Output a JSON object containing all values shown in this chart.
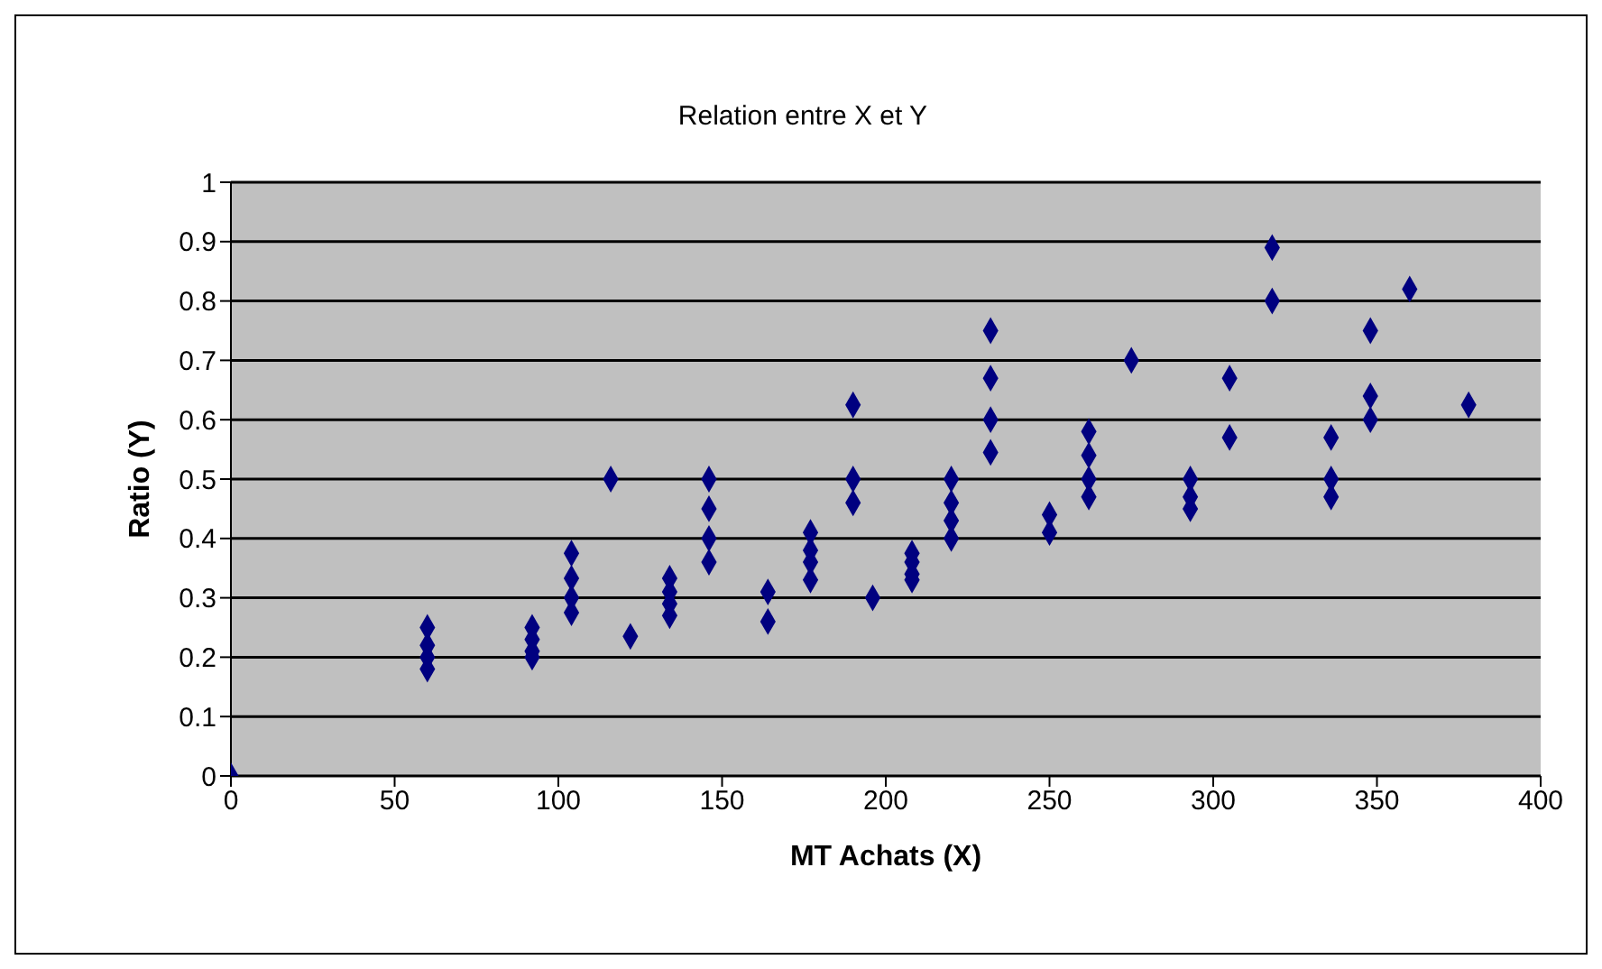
{
  "chart_data": {
    "type": "scatter",
    "title": "Relation entre X et Y",
    "xlabel": "MT Achats (X)",
    "ylabel": "Ratio (Y)",
    "x": [
      0,
      60,
      60,
      60,
      60,
      92,
      92,
      92,
      92,
      104,
      104,
      104,
      104,
      116,
      122,
      134,
      134,
      134,
      134,
      146,
      146,
      146,
      146,
      164,
      164,
      177,
      177,
      177,
      177,
      190,
      190,
      190,
      196,
      208,
      208,
      208,
      208,
      220,
      220,
      220,
      220,
      232,
      232,
      232,
      232,
      250,
      250,
      262,
      262,
      262,
      262,
      275,
      293,
      293,
      293,
      305,
      305,
      318,
      318,
      336,
      336,
      336,
      348,
      348,
      348,
      360,
      378
    ],
    "series": [
      {
        "color": "#000080",
        "values": [
          0,
          0.25,
          0.22,
          0.2,
          0.18,
          0.25,
          0.23,
          0.21,
          0.2,
          0.375,
          0.333,
          0.3,
          0.275,
          0.5,
          0.235,
          0.333,
          0.31,
          0.29,
          0.27,
          0.5,
          0.45,
          0.4,
          0.36,
          0.31,
          0.26,
          0.41,
          0.38,
          0.36,
          0.33,
          0.625,
          0.5,
          0.46,
          0.3,
          0.375,
          0.36,
          0.34,
          0.33,
          0.5,
          0.46,
          0.43,
          0.4,
          0.75,
          0.67,
          0.6,
          0.545,
          0.44,
          0.41,
          0.58,
          0.54,
          0.5,
          0.47,
          0.7,
          0.5,
          0.47,
          0.45,
          0.67,
          0.57,
          0.89,
          0.8,
          0.57,
          0.5,
          0.47,
          0.75,
          0.64,
          0.6,
          0.82,
          0.625
        ]
      }
    ],
    "xlim": [
      0,
      400
    ],
    "xticks": [
      0,
      50,
      100,
      150,
      200,
      250,
      300,
      350,
      400
    ],
    "ylim": [
      0,
      1
    ],
    "yticks": [
      0,
      0.1,
      0.2,
      0.3,
      0.4,
      0.5,
      0.6,
      0.7,
      0.8,
      0.9,
      1
    ],
    "grid": "y",
    "legend": false,
    "marker": "diamond"
  }
}
